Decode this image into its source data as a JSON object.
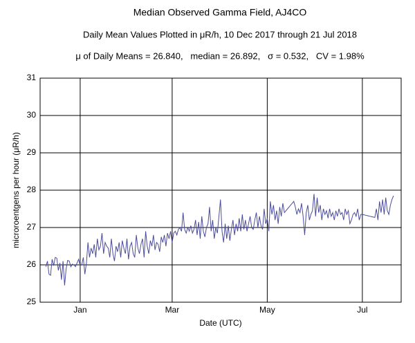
{
  "chart_data": {
    "type": "line",
    "title": "Median Observed Gamma Field, AJ4CO",
    "subtitle": "Daily Mean Values Plotted in μR/h, 10 Dec 2017 through 21 Jul 2018",
    "annotation": "μ of Daily Means = 26.840,   median = 26.892,   σ = 0.532,   CV = 1.98%",
    "x_label": "Date (UTC)",
    "y_label": "microroentgens per hour (μR/h)",
    "categories": [
      null,
      null,
      null,
      null,
      null,
      null,
      null,
      null,
      null,
      null,
      null,
      null,
      null,
      null,
      null,
      null,
      null,
      null,
      null,
      null,
      null,
      null,
      "Jan",
      null,
      null,
      null,
      null,
      null,
      null,
      null,
      null,
      null,
      null,
      null,
      null,
      null,
      null,
      null,
      null,
      null,
      null,
      null,
      null,
      null,
      null,
      null,
      null,
      null,
      null,
      null,
      null,
      null,
      null,
      null,
      null,
      null,
      null,
      null,
      null,
      null,
      null,
      null,
      null,
      null,
      null,
      null,
      null,
      null,
      null,
      null,
      null,
      null,
      null,
      null,
      null,
      null,
      null,
      null,
      null,
      null,
      null,
      "Mar",
      null,
      null,
      null,
      null,
      null,
      null,
      null,
      null,
      null,
      null,
      null,
      null,
      null,
      null,
      null,
      null,
      null,
      null,
      null,
      null,
      null,
      null,
      null,
      null,
      null,
      null,
      null,
      null,
      null,
      null,
      null,
      null,
      null,
      null,
      null,
      null,
      null,
      null,
      null,
      null,
      null,
      null,
      null,
      null,
      null,
      null,
      null,
      null,
      null,
      null,
      null,
      null,
      null,
      null,
      null,
      null,
      null,
      null,
      null,
      null,
      "May",
      null,
      null,
      null,
      null,
      null,
      null,
      null,
      null,
      null,
      null,
      null,
      null,
      null,
      null,
      null,
      null,
      null,
      null,
      null,
      null,
      null,
      null,
      null,
      null,
      null,
      null,
      null,
      null,
      null,
      null,
      null,
      null,
      null,
      null,
      null,
      null,
      null,
      null,
      null,
      null,
      null,
      null,
      null,
      null,
      null,
      null,
      null,
      null,
      null,
      null,
      null,
      null,
      null,
      null,
      null,
      null,
      null,
      null,
      null,
      null,
      "Jul",
      null,
      null,
      null,
      null,
      null,
      null,
      null,
      null,
      null,
      null,
      null,
      null,
      null,
      null,
      null,
      null,
      null,
      null,
      null,
      null
    ],
    "series": [
      {
        "name": "Daily mean",
        "color": "#4b4b9b",
        "values": [
          25.95,
          26.1,
          25.75,
          25.72,
          26.15,
          25.98,
          26.2,
          26.18,
          25.85,
          26.05,
          25.6,
          26.1,
          25.45,
          25.9,
          26.12,
          26.1,
          25.95,
          26.02,
          26.0,
          25.95,
          26.05,
          26.15,
          25.98,
          26.0,
          26.2,
          25.75,
          26.05,
          26.6,
          26.2,
          26.45,
          26.3,
          26.55,
          26.2,
          26.7,
          26.4,
          26.5,
          26.85,
          26.3,
          26.6,
          26.5,
          26.45,
          26.2,
          26.7,
          26.3,
          26.1,
          26.5,
          26.35,
          26.6,
          26.2,
          26.65,
          26.45,
          26.3,
          26.7,
          26.15,
          26.5,
          26.6,
          26.3,
          26.2,
          26.8,
          26.45,
          26.3,
          26.55,
          26.7,
          26.2,
          26.9,
          26.5,
          26.3,
          26.65,
          26.5,
          26.8,
          26.4,
          26.6,
          26.55,
          26.35,
          26.75,
          26.6,
          26.8,
          26.5,
          26.85,
          26.7,
          26.9,
          26.6,
          26.85,
          26.9,
          26.8,
          26.95,
          27.0,
          26.9,
          27.4,
          26.95,
          26.85,
          27.0,
          26.9,
          27.05,
          26.85,
          26.95,
          27.2,
          26.8,
          27.15,
          26.7,
          27.3,
          26.9,
          26.75,
          27.0,
          27.1,
          27.55,
          26.9,
          27.2,
          26.7,
          27.0,
          26.85,
          27.3,
          27.75,
          26.9,
          26.6,
          27.1,
          26.7,
          27.05,
          26.65,
          26.95,
          27.2,
          26.8,
          27.1,
          26.9,
          27.25,
          26.9,
          27.35,
          26.95,
          27.2,
          26.9,
          27.1,
          27.3,
          27.0,
          26.95,
          27.2,
          27.4,
          27.0,
          27.3,
          27.05,
          26.95,
          27.5,
          27.1,
          27.25,
          26.9,
          27.7,
          27.35,
          27.6,
          27.2,
          27.45,
          27.1,
          27.55,
          27.3,
          27.65,
          27.4,
          27.45,
          27.5,
          27.55,
          27.6,
          27.65,
          27.7,
          27.55,
          27.35,
          27.5,
          27.4,
          27.65,
          27.3,
          26.8,
          27.4,
          27.6,
          27.2,
          27.35,
          27.45,
          27.9,
          27.3,
          27.8,
          27.4,
          27.6,
          27.2,
          27.5,
          27.35,
          27.45,
          27.25,
          27.5,
          27.3,
          27.4,
          27.2,
          27.45,
          27.3,
          27.5,
          27.35,
          27.4,
          27.2,
          27.5,
          27.35,
          27.45,
          27.1,
          27.2,
          27.35,
          27.4,
          27.3,
          27.5,
          27.2,
          27.35,
          27.35,
          27.34,
          27.33,
          27.32,
          27.31,
          27.3,
          27.29,
          27.28,
          27.27,
          27.5,
          27.2,
          27.7,
          27.4,
          27.75,
          27.35,
          27.8,
          27.45,
          27.35,
          27.6,
          27.75,
          27.85
        ]
      }
    ],
    "ylim": [
      25,
      31
    ],
    "yticks": [
      25,
      26,
      27,
      28,
      29,
      30,
      31
    ],
    "grid": true
  }
}
